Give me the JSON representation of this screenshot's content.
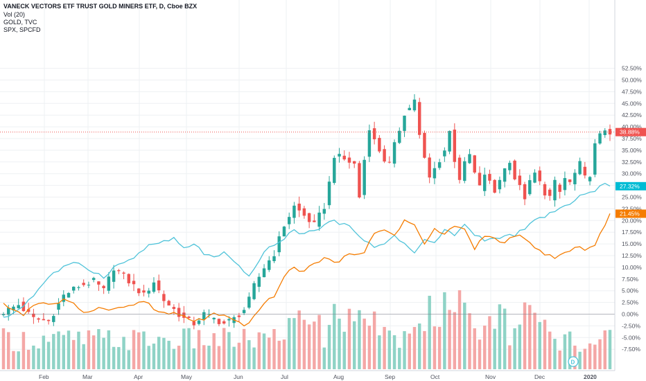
{
  "header": {
    "title": "VANECK VECTORS ETF TRUST GOLD MINERS ETF, D, Cboe BZX",
    "indicator": "Vol (20)",
    "compare_1": "GOLD, TVC",
    "compare_2": "SPX, SPCFD"
  },
  "colors": {
    "up": "#26a69a",
    "down": "#ef5350",
    "vol_up": "#8fd3c6",
    "vol_down": "#f4a7a6",
    "gold_line": "#4fc3d9",
    "spx_line": "#f57c00",
    "grid": "#eef0f3",
    "axis_text": "#50535e"
  },
  "markers": {
    "d_badge": "D"
  },
  "chart_data": {
    "type": "candlestick",
    "scale": "percent",
    "ylim": [
      -9,
      54
    ],
    "y_ticks": [
      "52.50%",
      "50.00%",
      "47.50%",
      "45.00%",
      "42.50%",
      "40.00%",
      "37.50%",
      "35.00%",
      "32.50%",
      "30.00%",
      "27.50%",
      "25.00%",
      "22.50%",
      "20.00%",
      "17.50%",
      "15.00%",
      "12.50%",
      "10.00%",
      "7.50%",
      "5.00%",
      "2.50%",
      "0.00%",
      "-2.50%",
      "-5.00%",
      "-7.50%"
    ],
    "x_ticks": [
      "Feb",
      "Mar",
      "Apr",
      "May",
      "Jun",
      "Jul",
      "Aug",
      "Sep",
      "Oct",
      "Nov",
      "Dec",
      "2020"
    ],
    "last_values": {
      "gdx": "38.88%",
      "gold": "27.32%",
      "spx": "21.45%"
    },
    "gdx_path": [
      [
        0,
        0.5
      ],
      [
        3,
        2
      ],
      [
        6,
        -1
      ],
      [
        9,
        -1.5
      ],
      [
        12,
        4
      ],
      [
        15,
        6
      ],
      [
        18,
        7
      ],
      [
        20,
        5
      ],
      [
        22,
        10
      ],
      [
        24,
        8
      ],
      [
        26,
        6
      ],
      [
        28,
        4
      ],
      [
        30,
        7
      ],
      [
        32,
        3
      ],
      [
        34,
        1
      ],
      [
        36,
        -1
      ],
      [
        38,
        -2
      ],
      [
        40,
        0
      ],
      [
        42,
        -1
      ],
      [
        44,
        -2
      ],
      [
        46,
        -1
      ],
      [
        48,
        1
      ],
      [
        49,
        3
      ],
      [
        50,
        6
      ],
      [
        52,
        10
      ],
      [
        54,
        13
      ],
      [
        56,
        19
      ],
      [
        58,
        23
      ],
      [
        60,
        21
      ],
      [
        62,
        19
      ],
      [
        64,
        23
      ],
      [
        65,
        28
      ],
      [
        66,
        34
      ],
      [
        68,
        33
      ],
      [
        70,
        32
      ],
      [
        71,
        25
      ],
      [
        72,
        33
      ],
      [
        73,
        40
      ],
      [
        74,
        37
      ],
      [
        75,
        35
      ],
      [
        76,
        33
      ],
      [
        77,
        32
      ],
      [
        78,
        36
      ],
      [
        80,
        43
      ],
      [
        81,
        44
      ],
      [
        82,
        46
      ],
      [
        83,
        38
      ],
      [
        84,
        33
      ],
      [
        85,
        29
      ],
      [
        86,
        31
      ],
      [
        87,
        33
      ],
      [
        88,
        35
      ],
      [
        89,
        39
      ],
      [
        90,
        33
      ],
      [
        91,
        29
      ],
      [
        92,
        32
      ],
      [
        93,
        34
      ],
      [
        94,
        30
      ],
      [
        95,
        27
      ],
      [
        96,
        30
      ],
      [
        97,
        28
      ],
      [
        98,
        26
      ],
      [
        99,
        29
      ],
      [
        100,
        31
      ],
      [
        101,
        33
      ],
      [
        102,
        29
      ],
      [
        103,
        27
      ],
      [
        104,
        25
      ],
      [
        105,
        28
      ],
      [
        106,
        30
      ],
      [
        107,
        28
      ],
      [
        108,
        26
      ],
      [
        109,
        25
      ],
      [
        110,
        28
      ],
      [
        111,
        26
      ],
      [
        112,
        29
      ],
      [
        113,
        28
      ],
      [
        114,
        30
      ],
      [
        115,
        32
      ],
      [
        116,
        29
      ],
      [
        117,
        30
      ],
      [
        118,
        36
      ],
      [
        119,
        38
      ],
      [
        120,
        39.5
      ],
      [
        121,
        38.9
      ]
    ],
    "gold_path": [
      [
        0,
        -1
      ],
      [
        3,
        1
      ],
      [
        6,
        4
      ],
      [
        9,
        8
      ],
      [
        12,
        10
      ],
      [
        15,
        11
      ],
      [
        18,
        9
      ],
      [
        20,
        8
      ],
      [
        22,
        10
      ],
      [
        24,
        11
      ],
      [
        26,
        12
      ],
      [
        28,
        14
      ],
      [
        30,
        15
      ],
      [
        32,
        15.5
      ],
      [
        34,
        16
      ],
      [
        36,
        14
      ],
      [
        38,
        15
      ],
      [
        40,
        13
      ],
      [
        42,
        12
      ],
      [
        44,
        13
      ],
      [
        46,
        11
      ],
      [
        48,
        9
      ],
      [
        49,
        8
      ],
      [
        50,
        10
      ],
      [
        52,
        13
      ],
      [
        54,
        15
      ],
      [
        56,
        16
      ],
      [
        58,
        18
      ],
      [
        60,
        17
      ],
      [
        62,
        18
      ],
      [
        64,
        19
      ],
      [
        66,
        20
      ],
      [
        68,
        19
      ],
      [
        70,
        18
      ],
      [
        72,
        16
      ],
      [
        74,
        14
      ],
      [
        76,
        15
      ],
      [
        78,
        17
      ],
      [
        80,
        15
      ],
      [
        82,
        13
      ],
      [
        84,
        16
      ],
      [
        86,
        15
      ],
      [
        88,
        18
      ],
      [
        90,
        17
      ],
      [
        92,
        19
      ],
      [
        94,
        17
      ],
      [
        96,
        16
      ],
      [
        98,
        16
      ],
      [
        100,
        16.5
      ],
      [
        102,
        17
      ],
      [
        104,
        18
      ],
      [
        106,
        20
      ],
      [
        108,
        21
      ],
      [
        110,
        22
      ],
      [
        112,
        23
      ],
      [
        114,
        24
      ],
      [
        116,
        26
      ],
      [
        118,
        26.5
      ],
      [
        120,
        28
      ],
      [
        121,
        27.32
      ]
    ],
    "spx_path": [
      [
        0,
        2
      ],
      [
        2,
        1
      ],
      [
        4,
        0
      ],
      [
        6,
        2
      ],
      [
        8,
        2.5
      ],
      [
        10,
        2
      ],
      [
        12,
        3
      ],
      [
        14,
        2
      ],
      [
        16,
        0.5
      ],
      [
        18,
        1
      ],
      [
        20,
        1.5
      ],
      [
        22,
        1
      ],
      [
        24,
        1.5
      ],
      [
        26,
        2
      ],
      [
        28,
        3
      ],
      [
        30,
        1
      ],
      [
        32,
        0.2
      ],
      [
        34,
        0
      ],
      [
        36,
        -0.5
      ],
      [
        38,
        -1.5
      ],
      [
        40,
        -1
      ],
      [
        42,
        0
      ],
      [
        44,
        -0.5
      ],
      [
        46,
        -1.5
      ],
      [
        48,
        -2.5
      ],
      [
        49,
        -2
      ],
      [
        50,
        0
      ],
      [
        52,
        2
      ],
      [
        54,
        4
      ],
      [
        56,
        8
      ],
      [
        58,
        10
      ],
      [
        60,
        9
      ],
      [
        62,
        11
      ],
      [
        64,
        12
      ],
      [
        66,
        11
      ],
      [
        68,
        12
      ],
      [
        70,
        13
      ],
      [
        72,
        13.5
      ],
      [
        74,
        17
      ],
      [
        76,
        18
      ],
      [
        78,
        17
      ],
      [
        80,
        20
      ],
      [
        82,
        19
      ],
      [
        84,
        15
      ],
      [
        86,
        18
      ],
      [
        88,
        17
      ],
      [
        90,
        19
      ],
      [
        92,
        18
      ],
      [
        94,
        14
      ],
      [
        96,
        17
      ],
      [
        98,
        16
      ],
      [
        100,
        15
      ],
      [
        102,
        17
      ],
      [
        104,
        16
      ],
      [
        106,
        14
      ],
      [
        108,
        13
      ],
      [
        110,
        12
      ],
      [
        112,
        13
      ],
      [
        114,
        14
      ],
      [
        116,
        14
      ],
      [
        118,
        15
      ],
      [
        120,
        19
      ],
      [
        121,
        21.45
      ]
    ]
  }
}
